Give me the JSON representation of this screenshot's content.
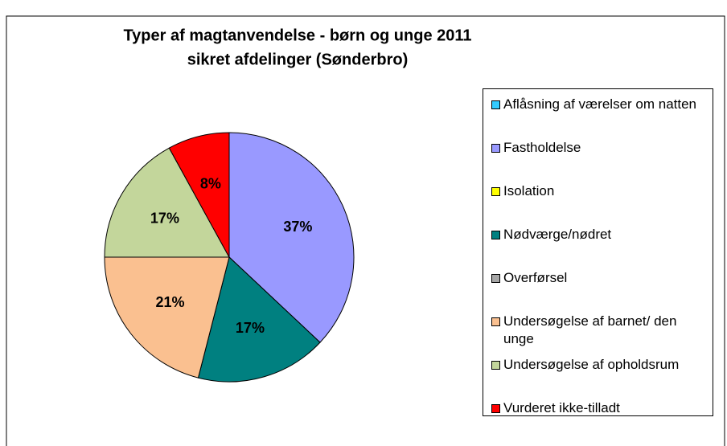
{
  "chart_data": {
    "type": "pie",
    "title": "Typer af magtanvendelse  - børn og unge 2011",
    "subtitle": "sikret afdelinger (Sønderbro)",
    "categories": [
      "Aflåsning af værelser om natten",
      "Fastholdelse",
      "Isolation",
      "Nødværge/nødret",
      "Overførsel",
      "Undersøgelse af barnet/ den unge",
      "Undersøgelse af opholdsrum",
      "Vurderet ikke-tilladt"
    ],
    "values": [
      0,
      37,
      0,
      17,
      0,
      21,
      17,
      8
    ],
    "value_labels": [
      null,
      "37%",
      null,
      "17%",
      null,
      "21%",
      "17%",
      "8%"
    ],
    "colors": [
      "#33ccff",
      "#9999ff",
      "#ffff00",
      "#008080",
      "#a6a6a6",
      "#fac090",
      "#c3d69b",
      "#ff0000"
    ],
    "legend": "right"
  }
}
